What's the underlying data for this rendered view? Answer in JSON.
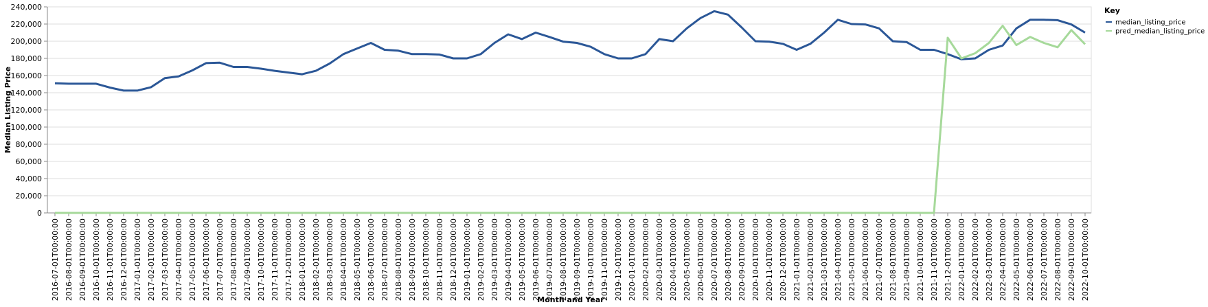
{
  "chart_data": {
    "type": "line",
    "xlabel": "Month and Year",
    "ylabel": "Median Listing Price",
    "ylim": [
      0,
      240000
    ],
    "yticks": [
      0,
      20000,
      40000,
      60000,
      80000,
      100000,
      120000,
      140000,
      160000,
      180000,
      200000,
      220000,
      240000
    ],
    "ytick_labels": [
      "0",
      "20,000",
      "40,000",
      "60,000",
      "80,000",
      "100,000",
      "120,000",
      "140,000",
      "160,000",
      "180,000",
      "200,000",
      "220,000",
      "240,000"
    ],
    "grid": true,
    "legend": {
      "title": "Key",
      "placement": "top-right"
    },
    "x": [
      "2016-07-01T00:00:00",
      "2016-08-01T00:00:00",
      "2016-09-01T00:00:00",
      "2016-10-01T00:00:00",
      "2016-11-01T00:00:00",
      "2016-12-01T00:00:00",
      "2017-01-01T00:00:00",
      "2017-02-01T00:00:00",
      "2017-03-01T00:00:00",
      "2017-04-01T00:00:00",
      "2017-05-01T00:00:00",
      "2017-06-01T00:00:00",
      "2017-07-01T00:00:00",
      "2017-08-01T00:00:00",
      "2017-09-01T00:00:00",
      "2017-10-01T00:00:00",
      "2017-11-01T00:00:00",
      "2017-12-01T00:00:00",
      "2018-01-01T00:00:00",
      "2018-02-01T00:00:00",
      "2018-03-01T00:00:00",
      "2018-04-01T00:00:00",
      "2018-05-01T00:00:00",
      "2018-06-01T00:00:00",
      "2018-07-01T00:00:00",
      "2018-08-01T00:00:00",
      "2018-09-01T00:00:00",
      "2018-10-01T00:00:00",
      "2018-11-01T00:00:00",
      "2018-12-01T00:00:00",
      "2019-01-01T00:00:00",
      "2019-02-01T00:00:00",
      "2019-03-01T00:00:00",
      "2019-04-01T00:00:00",
      "2019-05-01T00:00:00",
      "2019-06-01T00:00:00",
      "2019-07-01T00:00:00",
      "2019-08-01T00:00:00",
      "2019-09-01T00:00:00",
      "2019-10-01T00:00:00",
      "2019-11-01T00:00:00",
      "2019-12-01T00:00:00",
      "2020-01-01T00:00:00",
      "2020-02-01T00:00:00",
      "2020-03-01T00:00:00",
      "2020-04-01T00:00:00",
      "2020-05-01T00:00:00",
      "2020-06-01T00:00:00",
      "2020-07-01T00:00:00",
      "2020-08-01T00:00:00",
      "2020-09-01T00:00:00",
      "2020-10-01T00:00:00",
      "2020-11-01T00:00:00",
      "2020-12-01T00:00:00",
      "2021-01-01T00:00:00",
      "2021-02-01T00:00:00",
      "2021-03-01T00:00:00",
      "2021-04-01T00:00:00",
      "2021-05-01T00:00:00",
      "2021-06-01T00:00:00",
      "2021-07-01T00:00:00",
      "2021-08-01T00:00:00",
      "2021-09-01T00:00:00",
      "2021-10-01T00:00:00",
      "2021-11-01T00:00:00",
      "2021-12-01T00:00:00",
      "2022-01-01T00:00:00",
      "2022-02-01T00:00:00",
      "2022-03-01T00:00:00",
      "2022-04-01T00:00:00",
      "2022-05-01T00:00:00",
      "2022-06-01T00:00:00",
      "2022-07-01T00:00:00",
      "2022-08-01T00:00:00",
      "2022-09-01T00:00:00",
      "2022-10-01T00:00:00"
    ],
    "series": [
      {
        "name": "median_listing_price",
        "color": "#2b5797",
        "values": [
          151000,
          150500,
          150500,
          150500,
          146000,
          142500,
          142500,
          146500,
          157000,
          159000,
          166000,
          174500,
          175000,
          170000,
          170000,
          168000,
          165500,
          163500,
          161500,
          165500,
          174000,
          185000,
          191500,
          198000,
          190000,
          189000,
          185000,
          185000,
          184500,
          180000,
          180000,
          185000,
          198000,
          208000,
          202500,
          210000,
          205000,
          199500,
          198000,
          193500,
          185000,
          180000,
          180000,
          185000,
          202500,
          200000,
          215000,
          227000,
          235000,
          231000,
          216000,
          200000,
          199500,
          197000,
          190000,
          197000,
          210000,
          225000,
          220000,
          219500,
          215000,
          200000,
          199000,
          190000,
          190000,
          185000,
          179000,
          180000,
          190000,
          195000,
          215000,
          225000,
          225000,
          224500,
          219500,
          210000
        ]
      },
      {
        "name": "pred_median_listing_price",
        "color": "#a6d99a",
        "values": [
          0,
          0,
          0,
          0,
          0,
          0,
          0,
          0,
          0,
          0,
          0,
          0,
          0,
          0,
          0,
          0,
          0,
          0,
          0,
          0,
          0,
          0,
          0,
          0,
          0,
          0,
          0,
          0,
          0,
          0,
          0,
          0,
          0,
          0,
          0,
          0,
          0,
          0,
          0,
          0,
          0,
          0,
          0,
          0,
          0,
          0,
          0,
          0,
          0,
          0,
          0,
          0,
          0,
          0,
          0,
          0,
          0,
          0,
          0,
          0,
          0,
          0,
          0,
          0,
          0,
          204000,
          180000,
          186000,
          198000,
          218000,
          195500,
          205000,
          198000,
          193000,
          213000,
          196500
        ]
      }
    ]
  }
}
